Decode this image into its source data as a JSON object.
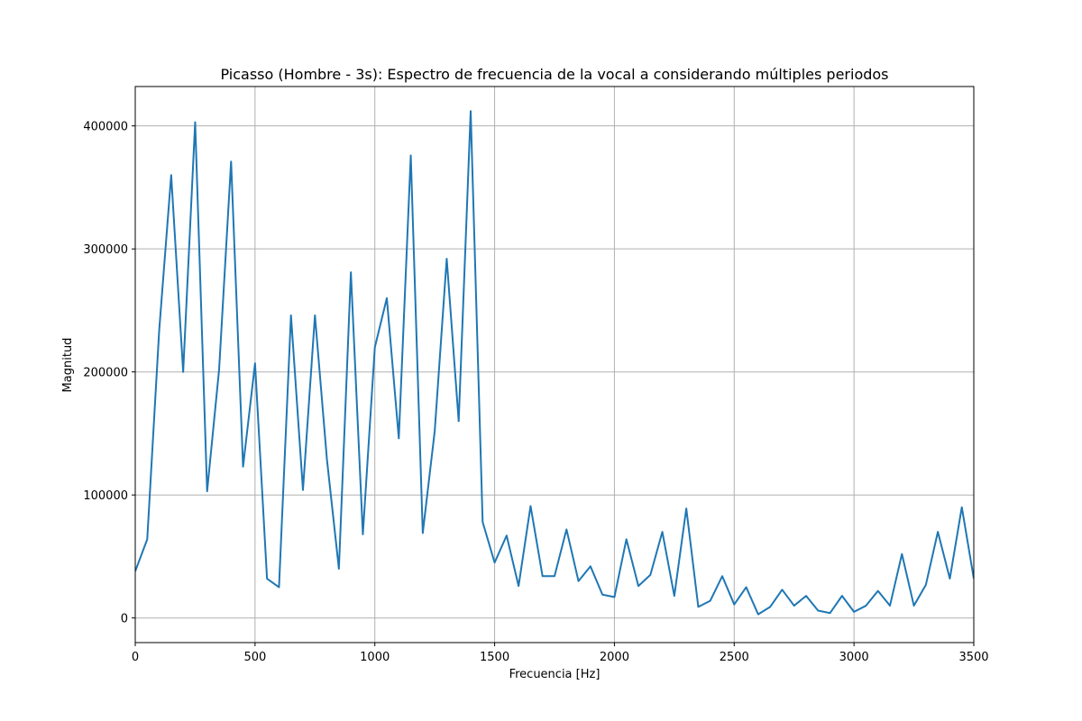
{
  "chart_data": {
    "type": "line",
    "title": "Picasso (Hombre - 3s): Espectro de frecuencia de la vocal a considerando múltiples periodos",
    "xlabel": "Frecuencia [Hz]",
    "ylabel": "Magnitud",
    "xlim": [
      0,
      3500
    ],
    "ylim": [
      -20000,
      432000
    ],
    "xticks": [
      0,
      500,
      1000,
      1500,
      2000,
      2500,
      3000,
      3500
    ],
    "yticks": [
      0,
      100000,
      200000,
      300000,
      400000
    ],
    "grid": true,
    "series": [
      {
        "color": "#1f77b4",
        "x": [
          0,
          50,
          100,
          150,
          200,
          250,
          300,
          350,
          400,
          450,
          500,
          550,
          600,
          650,
          700,
          750,
          800,
          850,
          900,
          950,
          1000,
          1050,
          1100,
          1150,
          1200,
          1250,
          1300,
          1350,
          1400,
          1450,
          1500,
          1550,
          1600,
          1650,
          1700,
          1750,
          1800,
          1850,
          1900,
          1950,
          2000,
          2050,
          2100,
          2150,
          2200,
          2250,
          2300,
          2350,
          2400,
          2450,
          2500,
          2550,
          2600,
          2650,
          2700,
          2750,
          2800,
          2850,
          2900,
          2950,
          3000,
          3050,
          3100,
          3150,
          3200,
          3250,
          3300,
          3350,
          3400,
          3450,
          3500
        ],
        "y": [
          38000,
          64000,
          234000,
          360000,
          200000,
          403000,
          103000,
          202000,
          371000,
          123000,
          207000,
          32000,
          25000,
          246000,
          104000,
          246000,
          129000,
          40000,
          281000,
          68000,
          220000,
          260000,
          146000,
          376000,
          69000,
          152000,
          292000,
          160000,
          412000,
          78000,
          45000,
          67000,
          26000,
          91000,
          34000,
          34000,
          72000,
          30000,
          42000,
          19000,
          17000,
          64000,
          26000,
          35000,
          70000,
          18000,
          89000,
          9000,
          14000,
          34000,
          11000,
          25000,
          3000,
          9000,
          23000,
          10000,
          18000,
          6000,
          4000,
          18000,
          5000,
          10000,
          22000,
          10000,
          52000,
          10000,
          27000,
          70000,
          32000,
          90000,
          32000
        ]
      }
    ]
  }
}
